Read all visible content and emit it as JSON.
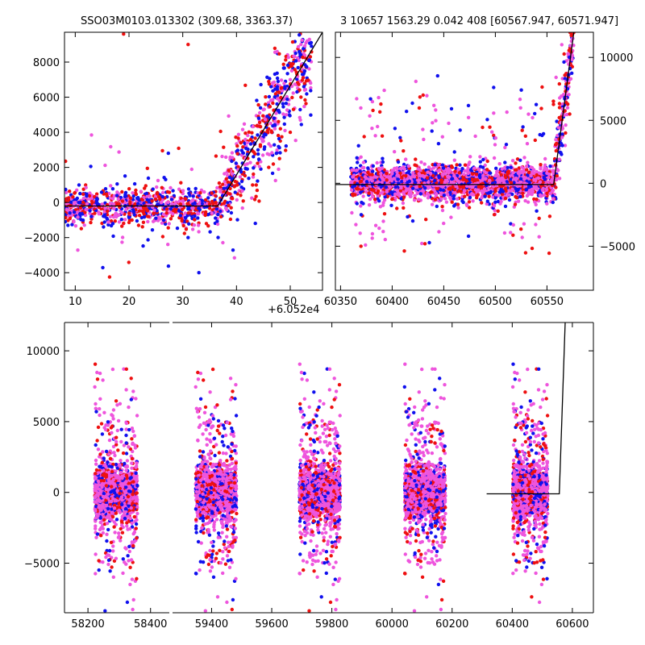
{
  "title": "SSO03M0103.013302 (309.68, 3363.37)",
  "subtitle": "3 10657 1563.29 0.042 408 [60567.947, 60571.947]",
  "colors": {
    "band_b": "#1010ee",
    "band_r": "#ee1010",
    "band_m": "#ee55dd",
    "model": "#000000"
  },
  "chart_data": [
    {
      "id": "zoom",
      "type": "scatter",
      "title": "",
      "xlabel": "",
      "ylabel": "",
      "offset_label": "+6.052e4",
      "xlim": [
        8,
        56
      ],
      "ylim": [
        -5000,
        9700
      ],
      "x_ticks": [
        10,
        20,
        30,
        40,
        50
      ],
      "x_tick_labels": [
        "10",
        "20",
        "30",
        "40",
        "50"
      ],
      "y_ticks": [
        -4000,
        -2000,
        0,
        2000,
        4000,
        6000,
        8000
      ],
      "y_tick_labels": [
        "−4000",
        "−2000",
        "0",
        "2000",
        "4000",
        "6000",
        "8000"
      ],
      "model_line": {
        "x": [
          8,
          36.5,
          56
        ],
        "y": [
          -200,
          -200,
          9700
        ]
      },
      "series": [
        {
          "color": "#ee55dd",
          "sample_points": [
            [
              10,
              0
            ],
            [
              12,
              -400
            ],
            [
              15,
              -100
            ],
            [
              18,
              200
            ],
            [
              22,
              -300
            ],
            [
              26,
              0
            ],
            [
              30,
              100
            ],
            [
              34,
              600
            ],
            [
              38,
              1000
            ],
            [
              42,
              2200
            ],
            [
              45,
              3500
            ],
            [
              48,
              5800
            ],
            [
              50,
              7000
            ],
            [
              52,
              9000
            ]
          ]
        },
        {
          "color": "#1010ee",
          "sample_points": [
            [
              9,
              -600
            ],
            [
              13,
              -800
            ],
            [
              17,
              -1200
            ],
            [
              21,
              -700
            ],
            [
              25,
              -900
            ],
            [
              31,
              -2000
            ],
            [
              33,
              -4000
            ],
            [
              37,
              -500
            ],
            [
              41,
              1200
            ],
            [
              44,
              3000
            ],
            [
              47,
              4800
            ],
            [
              49,
              6500
            ],
            [
              51,
              8500
            ]
          ]
        },
        {
          "color": "#ee1010",
          "sample_points": [
            [
              11,
              -300
            ],
            [
              16,
              -500
            ],
            [
              19,
              9600
            ],
            [
              23,
              -200
            ],
            [
              27,
              -600
            ],
            [
              31,
              9000
            ],
            [
              35,
              -100
            ],
            [
              39,
              -300
            ],
            [
              43,
              1000
            ],
            [
              46,
              2000
            ],
            [
              48,
              2500
            ],
            [
              50,
              4000
            ],
            [
              52,
              6000
            ]
          ]
        }
      ]
    },
    {
      "id": "recent",
      "type": "scatter",
      "title": "",
      "xlabel": "",
      "ylabel": "",
      "xlim": [
        60345,
        60595
      ],
      "ylim": [
        -8500,
        12000
      ],
      "x_ticks": [
        60350,
        60400,
        60450,
        60500,
        60550
      ],
      "x_tick_labels": [
        "60350",
        "60400",
        "60450",
        "60500",
        "60550"
      ],
      "y_ticks": [
        -5000,
        0,
        5000,
        10000
      ],
      "y_tick_labels": [
        "−5000",
        "0",
        "5000",
        "10000"
      ],
      "model_line": {
        "x": [
          60345,
          60556.5,
          60576
        ],
        "y": [
          -100,
          -100,
          12000
        ]
      },
      "series": [
        {
          "color": "#ee55dd",
          "sample_points": [
            [
              60365,
              300
            ],
            [
              60400,
              800
            ],
            [
              60440,
              -200
            ],
            [
              60480,
              1200
            ],
            [
              60520,
              400
            ],
            [
              60550,
              800
            ],
            [
              60570,
              6000
            ],
            [
              60575,
              11500
            ]
          ]
        },
        {
          "color": "#1010ee",
          "sample_points": [
            [
              60370,
              -2500
            ],
            [
              60420,
              -3000
            ],
            [
              60460,
              -1800
            ],
            [
              60500,
              -1500
            ],
            [
              60540,
              -2200
            ],
            [
              60565,
              3000
            ],
            [
              60570,
              7500
            ]
          ]
        },
        {
          "color": "#ee1010",
          "sample_points": [
            [
              60380,
              -500
            ],
            [
              60430,
              7000
            ],
            [
              60470,
              300
            ],
            [
              60510,
              -400
            ],
            [
              60550,
              -800
            ],
            [
              60568,
              4000
            ],
            [
              60572,
              5500
            ]
          ]
        }
      ]
    },
    {
      "id": "full",
      "type": "scatter",
      "title": "",
      "xlabel": "",
      "ylabel": "",
      "ylim": [
        -8500,
        12000
      ],
      "y_ticks": [
        -5000,
        0,
        5000,
        10000
      ],
      "y_tick_labels": [
        "−5000",
        "0",
        "5000",
        "10000"
      ],
      "segments": [
        {
          "xlim": [
            58125,
            58460
          ],
          "x_ticks": [
            58200,
            58400
          ],
          "x_tick_labels": [
            "58200",
            "58400"
          ]
        },
        {
          "xlim": [
            59270,
            60670
          ],
          "x_ticks": [
            59400,
            59600,
            59800,
            60000,
            60200,
            60400,
            60600
          ],
          "x_tick_labels": [
            "59400",
            "59600",
            "59800",
            "60000",
            "60200",
            "60400",
            "60600"
          ]
        }
      ],
      "clusters": [
        {
          "center": 58290,
          "half_width": 68
        },
        {
          "center": 59415,
          "half_width": 68
        },
        {
          "center": 59760,
          "half_width": 68
        },
        {
          "center": 60110,
          "half_width": 68
        },
        {
          "center": 60460,
          "half_width": 58
        }
      ],
      "model_line": {
        "x": [
          60315,
          60556.5,
          60576
        ],
        "y": [
          -100,
          -100,
          12000
        ]
      }
    }
  ]
}
